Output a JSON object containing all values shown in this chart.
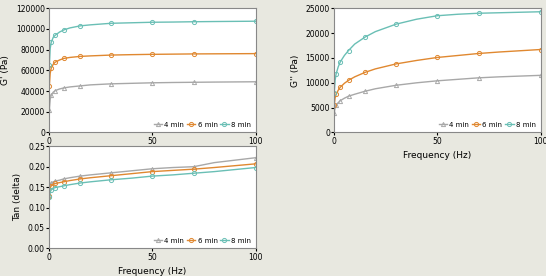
{
  "freq": [
    0.1,
    0.5,
    1.0,
    2.0,
    3.0,
    5.0,
    7.0,
    10.0,
    15.0,
    20.0,
    30.0,
    40.0,
    50.0,
    60.0,
    70.0,
    80.0,
    100.0
  ],
  "Gprime_4min": [
    22000,
    32000,
    36000,
    39000,
    40500,
    42000,
    43000,
    44000,
    45000,
    46000,
    47000,
    47500,
    48000,
    48300,
    48500,
    48700,
    49000
  ],
  "Gprime_6min": [
    45000,
    57000,
    62000,
    66000,
    68000,
    70000,
    71500,
    72500,
    73500,
    74000,
    74800,
    75200,
    75500,
    75700,
    75900,
    76000,
    76200
  ],
  "Gprime_8min": [
    65000,
    81000,
    87000,
    92000,
    94000,
    97000,
    99000,
    101000,
    103000,
    104000,
    105500,
    106000,
    106500,
    106700,
    107000,
    107200,
    107500
  ],
  "Gdprime_4min": [
    4000,
    5000,
    5500,
    6000,
    6400,
    6900,
    7300,
    7700,
    8300,
    8800,
    9500,
    10000,
    10400,
    10700,
    11000,
    11200,
    11500
  ],
  "Gdprime_6min": [
    5500,
    7000,
    7700,
    8500,
    9100,
    9900,
    10500,
    11200,
    12100,
    12800,
    13800,
    14500,
    15100,
    15500,
    15900,
    16200,
    16700
  ],
  "Gdprime_8min": [
    8000,
    10500,
    11800,
    13200,
    14200,
    15500,
    16500,
    17800,
    19200,
    20300,
    21800,
    22800,
    23500,
    23800,
    24000,
    24100,
    24300
  ],
  "tan_4min": [
    0.13,
    0.155,
    0.16,
    0.163,
    0.165,
    0.167,
    0.17,
    0.173,
    0.177,
    0.18,
    0.185,
    0.19,
    0.195,
    0.198,
    0.2,
    0.21,
    0.222
  ],
  "tan_6min": [
    0.128,
    0.148,
    0.153,
    0.157,
    0.159,
    0.161,
    0.163,
    0.166,
    0.17,
    0.173,
    0.178,
    0.183,
    0.188,
    0.191,
    0.194,
    0.198,
    0.207
  ],
  "tan_8min": [
    0.125,
    0.138,
    0.143,
    0.147,
    0.149,
    0.151,
    0.153,
    0.156,
    0.16,
    0.163,
    0.168,
    0.172,
    0.177,
    0.18,
    0.184,
    0.188,
    0.198
  ],
  "color_4min": "#a8a8a8",
  "color_6min": "#e08830",
  "color_8min": "#6abfb5",
  "marker_4min": "^",
  "marker_6min": "o",
  "marker_8min": "o",
  "legend_labels": [
    "4 min",
    "6 min",
    "8 min"
  ],
  "xlabel": "Frequency (Hz)",
  "ylabel_Gprime": "G' (Pa)",
  "ylabel_Gdprime": "G'' (Pa)",
  "ylabel_tan": "Tan (delta)",
  "xlim": [
    0,
    100
  ],
  "ylim_Gprime": [
    0,
    120000
  ],
  "ylim_Gdprime": [
    0,
    25000
  ],
  "ylim_tan": [
    0.0,
    0.25
  ],
  "yticks_Gprime": [
    0,
    20000,
    40000,
    60000,
    80000,
    100000,
    120000
  ],
  "yticks_Gdprime": [
    0,
    5000,
    10000,
    15000,
    20000,
    25000
  ],
  "yticks_tan": [
    0.0,
    0.05,
    0.1,
    0.15,
    0.2,
    0.25
  ],
  "xticks": [
    0,
    50,
    100
  ],
  "fig_bg_color": "#e8e8e0",
  "plot_bg_color": "#ffffff",
  "marker_size": 3,
  "linewidth": 1.0
}
